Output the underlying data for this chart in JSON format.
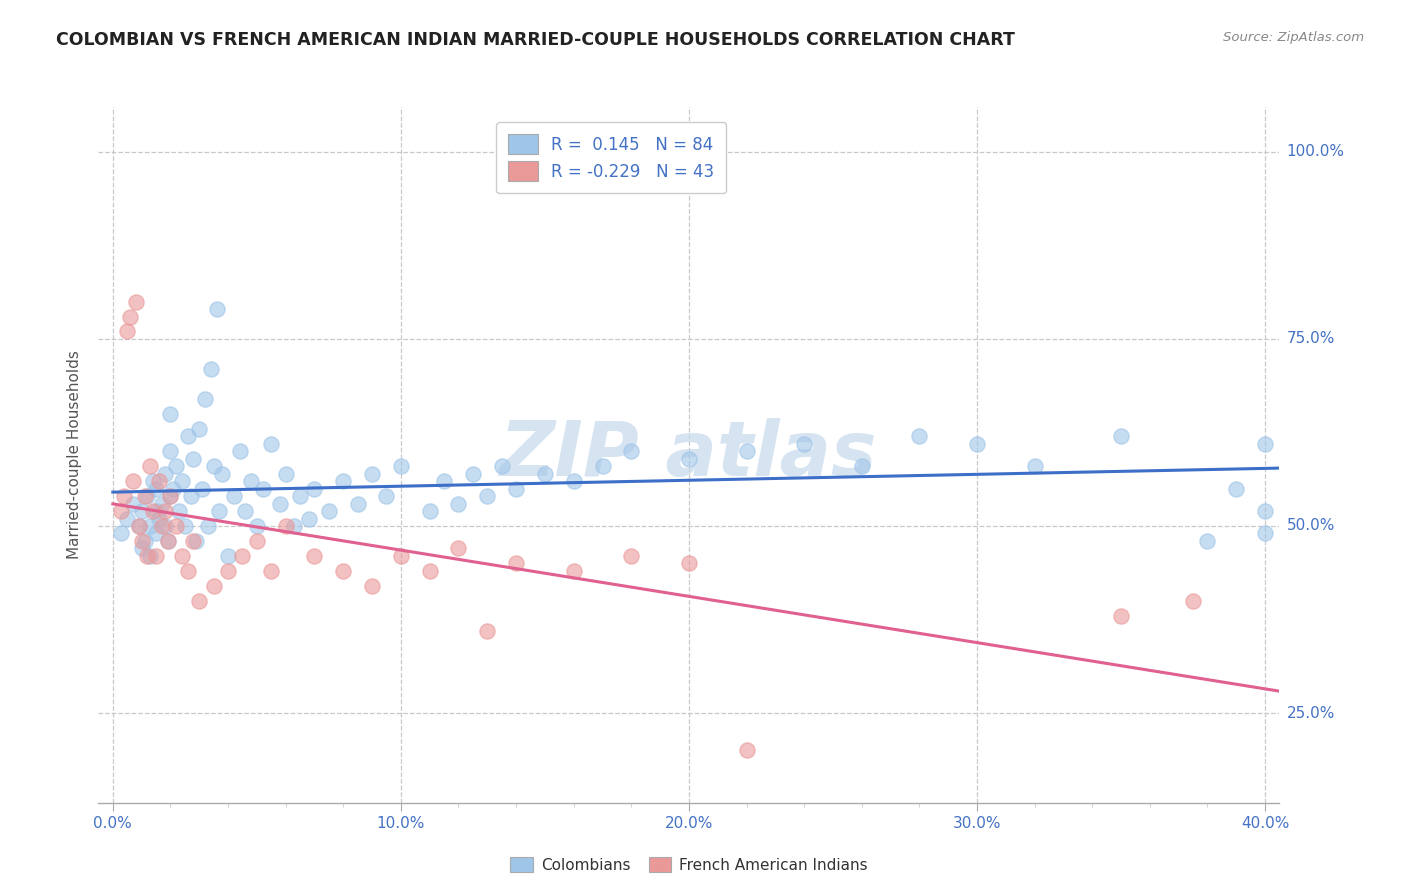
{
  "title": "COLOMBIAN VS FRENCH AMERICAN INDIAN MARRIED-COUPLE HOUSEHOLDS CORRELATION CHART",
  "source": "Source: ZipAtlas.com",
  "ylabel": "Married-couple Households",
  "xlabel_ticks": [
    "0.0%",
    "",
    "",
    "",
    "",
    "10.0%",
    "",
    "",
    "",
    "",
    "20.0%",
    "",
    "",
    "",
    "",
    "30.0%",
    "",
    "",
    "",
    "",
    "40.0%"
  ],
  "ylabel_ticks_vals": [
    0.25,
    0.5,
    0.75,
    1.0
  ],
  "ylabel_ticks_labels": [
    "25.0%",
    "50.0%",
    "75.0%",
    "100.0%"
  ],
  "xlim": [
    -0.005,
    0.405
  ],
  "ylim": [
    0.13,
    1.06
  ],
  "blue_color": "#9fc5e8",
  "pink_color": "#ea9999",
  "blue_line_color": "#3d6fc8",
  "pink_line_color": "#e06090",
  "background_color": "#ffffff",
  "grid_color": "#c8c8c8",
  "title_color": "#222222",
  "axis_label_color": "#4472c4",
  "source_color": "#888888",
  "watermark_color": "#c5d8ec",
  "colombians_label": "Colombians",
  "french_label": "French American Indians",
  "blue_x": [
    0.003,
    0.005,
    0.007,
    0.009,
    0.01,
    0.01,
    0.011,
    0.012,
    0.013,
    0.013,
    0.014,
    0.015,
    0.015,
    0.015,
    0.016,
    0.017,
    0.018,
    0.018,
    0.019,
    0.02,
    0.02,
    0.02,
    0.021,
    0.022,
    0.023,
    0.024,
    0.025,
    0.026,
    0.027,
    0.028,
    0.029,
    0.03,
    0.031,
    0.032,
    0.033,
    0.034,
    0.035,
    0.036,
    0.037,
    0.038,
    0.04,
    0.042,
    0.044,
    0.046,
    0.048,
    0.05,
    0.052,
    0.055,
    0.058,
    0.06,
    0.063,
    0.065,
    0.068,
    0.07,
    0.075,
    0.08,
    0.085,
    0.09,
    0.095,
    0.1,
    0.11,
    0.115,
    0.12,
    0.125,
    0.13,
    0.135,
    0.14,
    0.15,
    0.16,
    0.17,
    0.18,
    0.2,
    0.22,
    0.24,
    0.26,
    0.28,
    0.3,
    0.32,
    0.35,
    0.38,
    0.39,
    0.4,
    0.4,
    0.4
  ],
  "blue_y": [
    0.49,
    0.51,
    0.53,
    0.5,
    0.47,
    0.52,
    0.48,
    0.54,
    0.5,
    0.46,
    0.56,
    0.52,
    0.49,
    0.55,
    0.51,
    0.53,
    0.5,
    0.57,
    0.48,
    0.54,
    0.6,
    0.65,
    0.55,
    0.58,
    0.52,
    0.56,
    0.5,
    0.62,
    0.54,
    0.59,
    0.48,
    0.63,
    0.55,
    0.67,
    0.5,
    0.71,
    0.58,
    0.79,
    0.52,
    0.57,
    0.46,
    0.54,
    0.6,
    0.52,
    0.56,
    0.5,
    0.55,
    0.61,
    0.53,
    0.57,
    0.5,
    0.54,
    0.51,
    0.55,
    0.52,
    0.56,
    0.53,
    0.57,
    0.54,
    0.58,
    0.52,
    0.56,
    0.53,
    0.57,
    0.54,
    0.58,
    0.55,
    0.57,
    0.56,
    0.58,
    0.6,
    0.59,
    0.6,
    0.61,
    0.58,
    0.62,
    0.61,
    0.58,
    0.62,
    0.48,
    0.55,
    0.49,
    0.52,
    0.61
  ],
  "pink_x": [
    0.003,
    0.004,
    0.005,
    0.006,
    0.007,
    0.008,
    0.009,
    0.01,
    0.011,
    0.012,
    0.013,
    0.014,
    0.015,
    0.016,
    0.017,
    0.018,
    0.019,
    0.02,
    0.022,
    0.024,
    0.026,
    0.028,
    0.03,
    0.035,
    0.04,
    0.045,
    0.05,
    0.055,
    0.06,
    0.07,
    0.08,
    0.09,
    0.1,
    0.11,
    0.12,
    0.13,
    0.14,
    0.16,
    0.18,
    0.2,
    0.22,
    0.35,
    0.375
  ],
  "pink_y": [
    0.52,
    0.54,
    0.76,
    0.78,
    0.56,
    0.8,
    0.5,
    0.48,
    0.54,
    0.46,
    0.58,
    0.52,
    0.46,
    0.56,
    0.5,
    0.52,
    0.48,
    0.54,
    0.5,
    0.46,
    0.44,
    0.48,
    0.4,
    0.42,
    0.44,
    0.46,
    0.48,
    0.44,
    0.5,
    0.46,
    0.44,
    0.42,
    0.46,
    0.44,
    0.47,
    0.36,
    0.45,
    0.44,
    0.46,
    0.45,
    0.2,
    0.38,
    0.4
  ]
}
